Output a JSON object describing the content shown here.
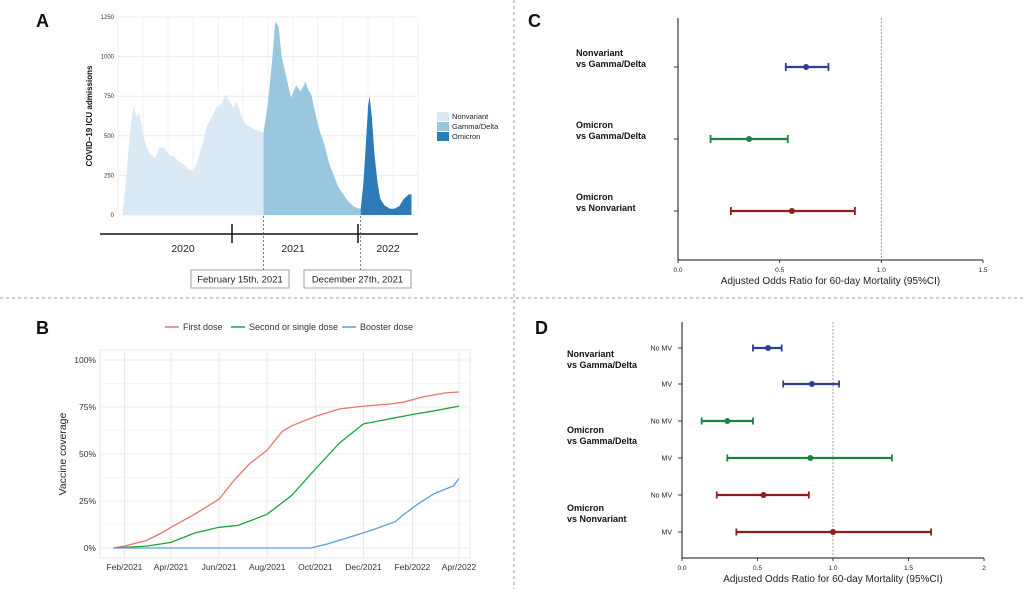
{
  "chart_data": [
    {
      "panel": "A",
      "type": "area",
      "ylabel": "COVID–19 ICU admissions",
      "ylim": [
        0,
        1250
      ],
      "yticks": [
        "0",
        "250",
        "500",
        "750",
        "1000",
        "1250"
      ],
      "x_start": "2019-11",
      "x_end": "2022-07",
      "years": [
        "2020",
        "2021",
        "2022"
      ],
      "legend_position": "right",
      "series": [
        {
          "name": "Nonvariant",
          "color": "#dbe9f5",
          "points": [
            [
              "2019-11-15",
              0
            ],
            [
              "2019-11-25",
              180
            ],
            [
              "2019-12-05",
              420
            ],
            [
              "2019-12-15",
              600
            ],
            [
              "2019-12-22",
              680
            ],
            [
              "2020-01-01",
              620
            ],
            [
              "2020-01-10",
              640
            ],
            [
              "2020-01-20",
              520
            ],
            [
              "2020-02-01",
              430
            ],
            [
              "2020-02-15",
              380
            ],
            [
              "2020-03-01",
              360
            ],
            [
              "2020-03-15",
              430
            ],
            [
              "2020-04-01",
              420
            ],
            [
              "2020-04-15",
              380
            ],
            [
              "2020-05-01",
              370
            ],
            [
              "2020-05-15",
              340
            ],
            [
              "2020-06-01",
              320
            ],
            [
              "2020-06-15",
              290
            ],
            [
              "2020-07-01",
              280
            ],
            [
              "2020-07-15",
              330
            ],
            [
              "2020-08-01",
              450
            ],
            [
              "2020-08-15",
              560
            ],
            [
              "2020-09-01",
              620
            ],
            [
              "2020-09-15",
              680
            ],
            [
              "2020-10-01",
              700
            ],
            [
              "2020-10-15",
              760
            ],
            [
              "2020-11-01",
              700
            ],
            [
              "2020-11-10",
              680
            ],
            [
              "2020-11-20",
              720
            ],
            [
              "2020-12-01",
              650
            ],
            [
              "2020-12-10",
              600
            ],
            [
              "2020-12-20",
              570
            ],
            [
              "2021-01-01",
              560
            ],
            [
              "2021-01-15",
              540
            ],
            [
              "2021-02-01",
              530
            ],
            [
              "2021-02-15",
              520
            ],
            [
              "2021-02-15",
              0
            ]
          ]
        },
        {
          "name": "Gamma/Delta",
          "color": "#9ac7e0",
          "points": [
            [
              "2021-02-15",
              0
            ],
            [
              "2021-02-15",
              520
            ],
            [
              "2021-03-01",
              700
            ],
            [
              "2021-03-15",
              980
            ],
            [
              "2021-03-25",
              1220
            ],
            [
              "2021-04-05",
              1190
            ],
            [
              "2021-04-15",
              1000
            ],
            [
              "2021-05-01",
              860
            ],
            [
              "2021-05-15",
              740
            ],
            [
              "2021-06-01",
              820
            ],
            [
              "2021-06-15",
              780
            ],
            [
              "2021-07-01",
              840
            ],
            [
              "2021-07-10",
              790
            ],
            [
              "2021-07-20",
              760
            ],
            [
              "2021-08-01",
              650
            ],
            [
              "2021-08-15",
              540
            ],
            [
              "2021-09-01",
              440
            ],
            [
              "2021-09-15",
              330
            ],
            [
              "2021-10-01",
              250
            ],
            [
              "2021-10-15",
              180
            ],
            [
              "2021-11-01",
              130
            ],
            [
              "2021-11-15",
              90
            ],
            [
              "2021-12-01",
              60
            ],
            [
              "2021-12-15",
              45
            ],
            [
              "2021-12-27",
              40
            ],
            [
              "2021-12-27",
              0
            ]
          ]
        },
        {
          "name": "Omicron",
          "color": "#2d7ab8",
          "points": [
            [
              "2021-12-27",
              0
            ],
            [
              "2021-12-27",
              40
            ],
            [
              "2022-01-05",
              200
            ],
            [
              "2022-01-12",
              420
            ],
            [
              "2022-01-20",
              690
            ],
            [
              "2022-01-25",
              750
            ],
            [
              "2022-02-01",
              620
            ],
            [
              "2022-02-10",
              380
            ],
            [
              "2022-02-20",
              200
            ],
            [
              "2022-03-01",
              100
            ],
            [
              "2022-03-15",
              60
            ],
            [
              "2022-04-01",
              40
            ],
            [
              "2022-04-15",
              40
            ],
            [
              "2022-05-01",
              55
            ],
            [
              "2022-05-15",
              100
            ],
            [
              "2022-06-01",
              130
            ],
            [
              "2022-06-10",
              130
            ],
            [
              "2022-06-10",
              0
            ]
          ]
        }
      ],
      "callouts": [
        {
          "label": "February 15th, 2021",
          "date": "2021-02-15"
        },
        {
          "label": "December 27th, 2021",
          "date": "2021-12-27"
        }
      ]
    },
    {
      "panel": "B",
      "type": "line",
      "xlabel": "",
      "ylabel": "Vaccine coverage",
      "ylim": [
        0,
        100
      ],
      "yticks": [
        "0%",
        "25%",
        "50%",
        "75%",
        "100%"
      ],
      "x_start": "2021-01-01",
      "x_end": "2022-04-15",
      "xticks": [
        [
          "2021-02-01",
          "Feb/2021"
        ],
        [
          "2021-04-01",
          "Apr/2021"
        ],
        [
          "2021-06-01",
          "Jun/2021"
        ],
        [
          "2021-08-01",
          "Aug/2021"
        ],
        [
          "2021-10-01",
          "Oct/2021"
        ],
        [
          "2021-12-01",
          "Dec/2021"
        ],
        [
          "2022-02-01",
          "Feb/2022"
        ],
        [
          "2022-04-01",
          "Apr/2022"
        ]
      ],
      "grid": true,
      "legend_position": "top",
      "series": [
        {
          "name": "First dose",
          "color": "#e8766d",
          "points": [
            [
              "2021-01-18",
              0
            ],
            [
              "2021-02-01",
              1
            ],
            [
              "2021-03-01",
              4
            ],
            [
              "2021-03-20",
              8
            ],
            [
              "2021-04-01",
              11
            ],
            [
              "2021-05-01",
              18
            ],
            [
              "2021-06-01",
              26
            ],
            [
              "2021-06-20",
              36
            ],
            [
              "2021-07-10",
              45
            ],
            [
              "2021-08-01",
              52
            ],
            [
              "2021-08-20",
              62
            ],
            [
              "2021-09-01",
              65
            ],
            [
              "2021-10-01",
              70
            ],
            [
              "2021-11-01",
              74
            ],
            [
              "2021-12-01",
              75.5
            ],
            [
              "2022-01-01",
              76.5
            ],
            [
              "2022-01-20",
              77.5
            ],
            [
              "2022-02-15",
              80.5
            ],
            [
              "2022-03-15",
              82.5
            ],
            [
              "2022-04-01",
              83
            ]
          ]
        },
        {
          "name": "Second or single dose",
          "color": "#1aa33a",
          "points": [
            [
              "2021-01-18",
              0
            ],
            [
              "2021-03-01",
              1
            ],
            [
              "2021-04-01",
              3
            ],
            [
              "2021-05-01",
              8
            ],
            [
              "2021-06-01",
              11
            ],
            [
              "2021-06-25",
              12
            ],
            [
              "2021-08-01",
              18
            ],
            [
              "2021-09-01",
              28
            ],
            [
              "2021-10-01",
              42
            ],
            [
              "2021-11-01",
              56
            ],
            [
              "2021-12-01",
              66
            ],
            [
              "2022-01-01",
              68.5
            ],
            [
              "2022-02-01",
              71
            ],
            [
              "2022-03-01",
              73
            ],
            [
              "2022-04-01",
              75.5
            ]
          ]
        },
        {
          "name": "Booster dose",
          "color": "#5d9be0",
          "points": [
            [
              "2021-01-18",
              0
            ],
            [
              "2021-09-25",
              0
            ],
            [
              "2021-10-15",
              2
            ],
            [
              "2021-11-15",
              6
            ],
            [
              "2021-12-15",
              10
            ],
            [
              "2022-01-10",
              14
            ],
            [
              "2022-01-20",
              17.5
            ],
            [
              "2022-02-10",
              24
            ],
            [
              "2022-03-01",
              29
            ],
            [
              "2022-03-25",
              33
            ],
            [
              "2022-04-01",
              37
            ]
          ]
        }
      ]
    },
    {
      "panel": "C",
      "type": "forest",
      "xlabel": "Adjusted Odds Ratio for 60-day Mortality (95%CI)",
      "xlim": [
        0,
        1.5
      ],
      "xticks": [
        "0.0",
        "0.5",
        "1.0",
        "1.5"
      ],
      "reference_line": 1.0,
      "rows": [
        {
          "label": [
            "Nonvariant",
            "vs Gamma/Delta"
          ],
          "estimate": 0.63,
          "lower": 0.53,
          "upper": 0.74,
          "color": "#2c3e98"
        },
        {
          "label": [
            "Omicron",
            "vs Gamma/Delta"
          ],
          "estimate": 0.35,
          "lower": 0.16,
          "upper": 0.54,
          "color": "#1a8445"
        },
        {
          "label": [
            "Omicron",
            "vs Nonvariant"
          ],
          "estimate": 0.56,
          "lower": 0.26,
          "upper": 0.87,
          "color": "#8b1f1b"
        }
      ]
    },
    {
      "panel": "D",
      "type": "forest",
      "xlabel": "Adjusted Odds Ratio for 60-day Mortality (95%CI)",
      "xlim": [
        0,
        2
      ],
      "xticks": [
        "0.0",
        "0.5",
        "1.0",
        "1.5",
        "2"
      ],
      "reference_line": 1.0,
      "groups": [
        {
          "label": [
            "Nonvariant",
            "vs Gamma/Delta"
          ],
          "color": "#2c3e98",
          "rows": [
            {
              "sub": "No MV",
              "estimate": 0.57,
              "lower": 0.47,
              "upper": 0.66
            },
            {
              "sub": "MV",
              "estimate": 0.86,
              "lower": 0.67,
              "upper": 1.04
            }
          ]
        },
        {
          "label": [
            "Omicron",
            "vs Gamma/Delta"
          ],
          "color": "#1a8445",
          "rows": [
            {
              "sub": "No MV",
              "estimate": 0.3,
              "lower": 0.13,
              "upper": 0.47
            },
            {
              "sub": "MV",
              "estimate": 0.85,
              "lower": 0.3,
              "upper": 1.39
            }
          ]
        },
        {
          "label": [
            "Omicron",
            "vs Nonvariant"
          ],
          "color": "#8b1f1b",
          "rows": [
            {
              "sub": "No MV",
              "estimate": 0.54,
              "lower": 0.23,
              "upper": 0.84
            },
            {
              "sub": "MV",
              "estimate": 1.0,
              "lower": 0.36,
              "upper": 1.65
            }
          ]
        }
      ]
    }
  ]
}
